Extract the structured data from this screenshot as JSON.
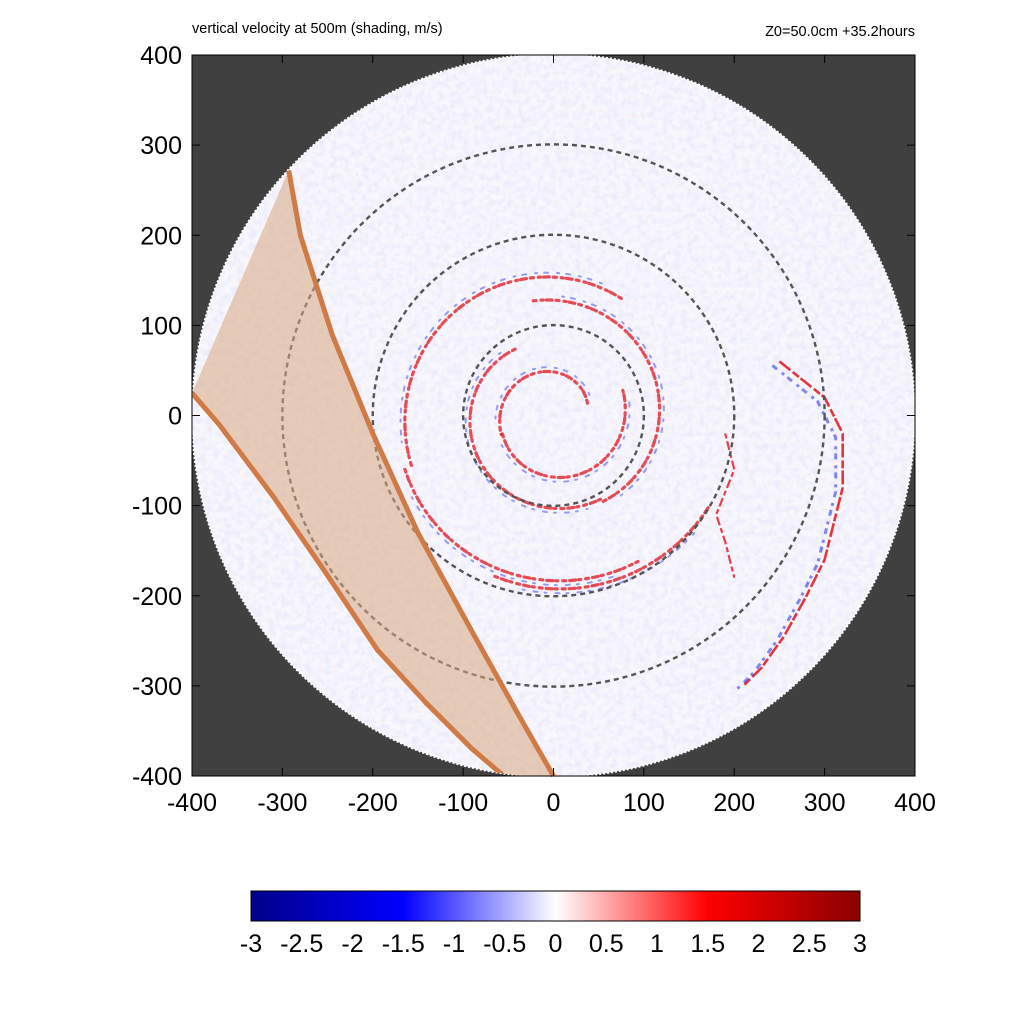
{
  "header": {
    "left": "vertical velocity at 500m (shading, m/s)",
    "right": "Z0=50.0cm  +35.2hours"
  },
  "colors": {
    "background_outside": "#404040",
    "ring_stroke": "#555555",
    "band_fill": "#d8a882",
    "band_stroke": "#d07a45",
    "positive": "#e0141e",
    "negative": "#1e2ee6"
  },
  "chart_data": {
    "type": "heatmap",
    "variable": "vertical velocity at 500m",
    "units": "m/s",
    "xlim": [
      -400,
      400
    ],
    "ylim": [
      -400,
      400
    ],
    "x_ticks": [
      "-400",
      "-300",
      "-200",
      "-100",
      "0",
      "100",
      "200",
      "300",
      "400"
    ],
    "y_ticks": [
      "400",
      "300",
      "200",
      "100",
      "0",
      "-100",
      "-200",
      "-300",
      "-400"
    ],
    "x_tick_values": [
      -400,
      -300,
      -200,
      -100,
      0,
      100,
      200,
      300,
      400
    ],
    "y_tick_values": [
      400,
      300,
      200,
      100,
      0,
      -100,
      -200,
      -300,
      -400
    ],
    "domain_radius": 400,
    "reference_circles_radii": [
      100,
      200,
      300
    ],
    "colorbar": {
      "range": [
        -3,
        3
      ],
      "tick_labels": [
        "-3",
        "-2.5",
        "-2",
        "-1.5",
        "-1",
        "-0.5",
        "0",
        "0.5",
        "1",
        "1.5",
        "2",
        "2.5",
        "3"
      ],
      "tick_values": [
        -3,
        -2.5,
        -2,
        -1.5,
        -1,
        -0.5,
        0,
        0.5,
        1,
        1.5,
        2,
        2.5,
        3
      ],
      "colors": [
        "#00008b",
        "#0000ff",
        "#ffffff",
        "#ff0000",
        "#8b0000"
      ]
    },
    "highlighted_band": {
      "edge_a": [
        [
          -293,
          272
        ],
        [
          -280,
          200
        ],
        [
          -245,
          90
        ],
        [
          -200,
          -20
        ],
        [
          -150,
          -130
        ],
        [
          -90,
          -240
        ],
        [
          -40,
          -330
        ],
        [
          0,
          -400
        ]
      ],
      "edge_b": [
        [
          -400,
          25
        ],
        [
          -370,
          -10
        ],
        [
          -310,
          -90
        ],
        [
          -255,
          -170
        ],
        [
          -195,
          -260
        ],
        [
          -140,
          -320
        ],
        [
          -90,
          -370
        ],
        [
          -55,
          -400
        ]
      ]
    },
    "rainbands": {
      "positive_arcs": [
        {
          "r": 40,
          "a0": 20,
          "a1": 200
        },
        {
          "r": 60,
          "a0": 200,
          "a1": 380
        },
        {
          "r": 85,
          "a0": 120,
          "a1": 300
        },
        {
          "r": 110,
          "a0": 300,
          "a1": 460
        },
        {
          "r": 150,
          "a0": 60,
          "a1": 200
        },
        {
          "r": 175,
          "a0": 200,
          "a1": 300
        },
        {
          "r": 190,
          "a0": 250,
          "a1": 330
        }
      ],
      "outer_band": [
        [
          250,
          60
        ],
        [
          300,
          20
        ],
        [
          320,
          -20
        ],
        [
          320,
          -80
        ],
        [
          300,
          -160
        ],
        [
          280,
          -200
        ],
        [
          255,
          -245
        ],
        [
          230,
          -280
        ],
        [
          210,
          -300
        ]
      ],
      "inner_outer_band": [
        [
          190,
          -20
        ],
        [
          200,
          -60
        ],
        [
          180,
          -110
        ],
        [
          190,
          -140
        ],
        [
          200,
          -180
        ]
      ]
    }
  }
}
